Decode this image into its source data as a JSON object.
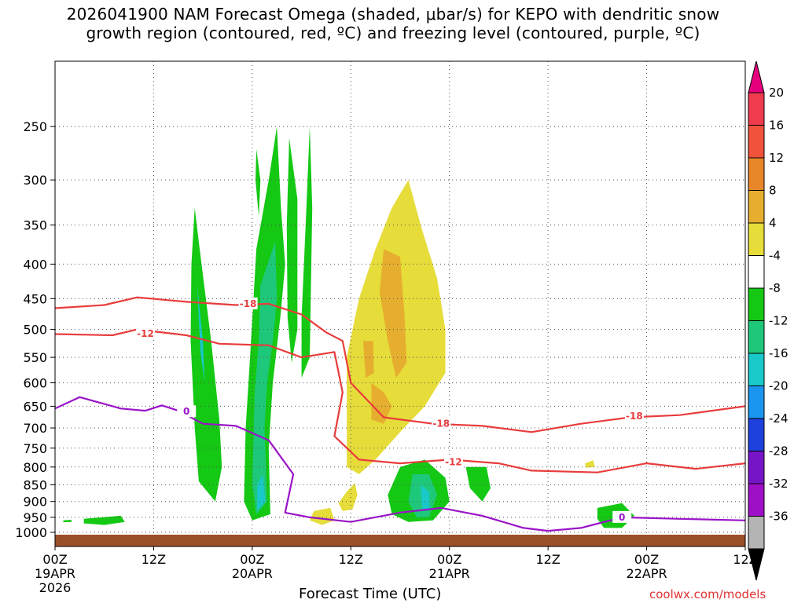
{
  "title_lines": [
    "2026041900 NAM Forecast Omega (shaded, μbar/s) for KEPO with dendritic snow",
    "growth region (contoured, red, ºC) and freezing level (contoured, purple, ºC)"
  ],
  "xlabel": "Forecast Time (UTC)",
  "credit": "coolwx.com/models",
  "chart_data": {
    "type": "heatmap",
    "title": "2026041900 NAM Forecast Omega (shaded, μbar/s) for KEPO with dendritic snow growth region (contoured, red, ºC) and freezing level (contoured, purple, ºC)",
    "xlabel": "Forecast Time (UTC)",
    "ylabel": "",
    "xlim_hours": [
      0,
      84
    ],
    "ylim_hPa": [
      1000,
      200
    ],
    "x_ticks": [
      {
        "hour": 0,
        "label": "00Z",
        "sub1": "19APR",
        "sub2": "2026"
      },
      {
        "hour": 12,
        "label": "12Z",
        "sub1": "",
        "sub2": ""
      },
      {
        "hour": 24,
        "label": "00Z",
        "sub1": "20APR",
        "sub2": ""
      },
      {
        "hour": 36,
        "label": "12Z",
        "sub1": "",
        "sub2": ""
      },
      {
        "hour": 48,
        "label": "00Z",
        "sub1": "21APR",
        "sub2": ""
      },
      {
        "hour": 60,
        "label": "12Z",
        "sub1": "",
        "sub2": ""
      },
      {
        "hour": 72,
        "label": "00Z",
        "sub1": "22APR",
        "sub2": ""
      },
      {
        "hour": 84,
        "label": "12Z",
        "sub1": "",
        "sub2": ""
      }
    ],
    "y_ticks": [
      250,
      300,
      350,
      400,
      450,
      500,
      550,
      600,
      650,
      700,
      750,
      800,
      850,
      900,
      950,
      1000
    ],
    "colorbar": {
      "labels": [
        "20",
        "16",
        "12",
        "8",
        "4",
        "-4",
        "-8",
        "-12",
        "-16",
        "-20",
        "-24",
        "-28",
        "-32",
        "-36"
      ],
      "colors": [
        "#f03a4e",
        "#f0523a",
        "#e8862a",
        "#e6ae2e",
        "#e6dc3a",
        "#ffffff",
        "#14c814",
        "#1ec87a",
        "#19c8c8",
        "#1a96f0",
        "#1e40dc",
        "#7814c8",
        "#a00fc8",
        "#b4b4b4"
      ],
      "top_arrow_color": "#e6007e",
      "bottom_arrow_color": "#000000"
    },
    "contour_labels": [
      {
        "text": "-18",
        "color": "#e83c3c",
        "hour": 23.5,
        "hPa": 458
      },
      {
        "text": "-12",
        "color": "#e83c3c",
        "hour": 11,
        "hPa": 507
      },
      {
        "text": "-18",
        "color": "#e83c3c",
        "hour": 47,
        "hPa": 690
      },
      {
        "text": "-12",
        "color": "#e83c3c",
        "hour": 48.5,
        "hPa": 787
      },
      {
        "text": "-18",
        "color": "#e83c3c",
        "hour": 70.5,
        "hPa": 672
      },
      {
        "text": "0",
        "color": "#9a14c8",
        "hour": 16,
        "hPa": 662
      },
      {
        "text": "0",
        "color": "#9a14c8",
        "hour": 69,
        "hPa": 950
      }
    ],
    "freezing_level_0C": [
      {
        "hour": 0,
        "hPa": 655
      },
      {
        "hour": 3,
        "hPa": 630
      },
      {
        "hour": 8,
        "hPa": 655
      },
      {
        "hour": 11,
        "hPa": 660
      },
      {
        "hour": 13,
        "hPa": 648
      },
      {
        "hour": 15,
        "hPa": 660
      },
      {
        "hour": 18,
        "hPa": 690
      },
      {
        "hour": 22,
        "hPa": 695
      },
      {
        "hour": 26,
        "hPa": 730
      },
      {
        "hour": 29,
        "hPa": 820
      },
      {
        "hour": 28,
        "hPa": 935
      },
      {
        "hour": 31,
        "hPa": 950
      },
      {
        "hour": 36,
        "hPa": 965
      },
      {
        "hour": 42,
        "hPa": 935
      },
      {
        "hour": 47,
        "hPa": 920
      },
      {
        "hour": 52,
        "hPa": 945
      },
      {
        "hour": 57,
        "hPa": 985
      },
      {
        "hour": 60,
        "hPa": 995
      },
      {
        "hour": 64,
        "hPa": 985
      },
      {
        "hour": 69,
        "hPa": 950
      },
      {
        "hour": 76,
        "hPa": 955
      },
      {
        "hour": 84,
        "hPa": 960
      }
    ],
    "isotherm_neg12C": [
      {
        "hour": 0,
        "hPa": 508
      },
      {
        "hour": 7,
        "hPa": 510
      },
      {
        "hour": 10,
        "hPa": 500
      },
      {
        "hour": 16,
        "hPa": 510
      },
      {
        "hour": 20,
        "hPa": 525
      },
      {
        "hour": 26,
        "hPa": 528
      },
      {
        "hour": 30,
        "hPa": 550
      },
      {
        "hour": 34,
        "hPa": 540
      },
      {
        "hour": 35,
        "hPa": 620
      },
      {
        "hour": 34,
        "hPa": 720
      },
      {
        "hour": 37,
        "hPa": 780
      },
      {
        "hour": 42,
        "hPa": 790
      },
      {
        "hour": 48,
        "hPa": 780
      },
      {
        "hour": 54,
        "hPa": 790
      },
      {
        "hour": 58,
        "hPa": 810
      },
      {
        "hour": 66,
        "hPa": 815
      },
      {
        "hour": 72,
        "hPa": 790
      },
      {
        "hour": 78,
        "hPa": 805
      },
      {
        "hour": 84,
        "hPa": 790
      }
    ],
    "isotherm_neg18C": [
      {
        "hour": 0,
        "hPa": 465
      },
      {
        "hour": 6,
        "hPa": 460
      },
      {
        "hour": 10,
        "hPa": 448
      },
      {
        "hour": 16,
        "hPa": 455
      },
      {
        "hour": 22,
        "hPa": 460
      },
      {
        "hour": 26,
        "hPa": 458
      },
      {
        "hour": 30,
        "hPa": 475
      },
      {
        "hour": 33,
        "hPa": 505
      },
      {
        "hour": 35,
        "hPa": 520
      },
      {
        "hour": 36,
        "hPa": 600
      },
      {
        "hour": 40,
        "hPa": 675
      },
      {
        "hour": 46,
        "hPa": 690
      },
      {
        "hour": 52,
        "hPa": 695
      },
      {
        "hour": 58,
        "hPa": 710
      },
      {
        "hour": 64,
        "hPa": 690
      },
      {
        "hour": 70,
        "hPa": 675
      },
      {
        "hour": 76,
        "hPa": 670
      },
      {
        "hour": 84,
        "hPa": 650
      }
    ],
    "omega_regions": [
      {
        "color": "#14c814",
        "points": [
          [
            17,
            330
          ],
          [
            17.6,
            380
          ],
          [
            19,
            520
          ],
          [
            20,
            680
          ],
          [
            20.3,
            800
          ],
          [
            19.5,
            900
          ],
          [
            17.5,
            840
          ],
          [
            17,
            700
          ],
          [
            16.5,
            520
          ],
          [
            16.6,
            400
          ]
        ]
      },
      {
        "color": "#19c8c8",
        "points": [
          [
            17.3,
            430
          ],
          [
            18,
            520
          ],
          [
            18.2,
            600
          ],
          [
            17.7,
            540
          ]
        ]
      },
      {
        "color": "#14c814",
        "points": [
          [
            24.5,
            380
          ],
          [
            26,
            300
          ],
          [
            27,
            250
          ],
          [
            27.5,
            330
          ],
          [
            28,
            400
          ],
          [
            27.5,
            470
          ],
          [
            26.5,
            600
          ],
          [
            26,
            750
          ],
          [
            26.2,
            940
          ],
          [
            24,
            960
          ],
          [
            23,
            900
          ],
          [
            23.2,
            700
          ],
          [
            23.7,
            560
          ]
        ]
      },
      {
        "color": "#1ec87a",
        "points": [
          [
            25,
            430
          ],
          [
            26.8,
            370
          ],
          [
            27,
            450
          ],
          [
            26.5,
            520
          ],
          [
            25.8,
            600
          ],
          [
            25.5,
            700
          ],
          [
            25.8,
            900
          ],
          [
            24.5,
            940
          ],
          [
            24,
            850
          ],
          [
            24.3,
            620
          ],
          [
            24.8,
            520
          ]
        ]
      },
      {
        "color": "#19c8c8",
        "points": [
          [
            25.3,
            820
          ],
          [
            25.6,
            900
          ],
          [
            24.6,
            930
          ],
          [
            24.6,
            850
          ]
        ]
      },
      {
        "color": "#14c814",
        "points": [
          [
            24.5,
            270
          ],
          [
            25,
            300
          ],
          [
            24.8,
            340
          ],
          [
            24.4,
            300
          ]
        ]
      },
      {
        "color": "#14c814",
        "points": [
          [
            28.5,
            260
          ],
          [
            29.5,
            320
          ],
          [
            29.5,
            500
          ],
          [
            28.8,
            560
          ],
          [
            28.3,
            480
          ],
          [
            28.2,
            350
          ]
        ]
      },
      {
        "color": "#14c814",
        "points": [
          [
            31,
            250
          ],
          [
            31.3,
            330
          ],
          [
            31,
            550
          ],
          [
            30,
            590
          ],
          [
            30,
            480
          ],
          [
            30.5,
            350
          ]
        ]
      },
      {
        "color": "#e6dc3a",
        "points": [
          [
            43,
            300
          ],
          [
            44.5,
            350
          ],
          [
            46.5,
            420
          ],
          [
            47.5,
            500
          ],
          [
            47.5,
            580
          ],
          [
            45,
            650
          ],
          [
            42,
            710
          ],
          [
            39,
            780
          ],
          [
            37,
            820
          ],
          [
            35.5,
            800
          ],
          [
            35.5,
            550
          ],
          [
            37,
            450
          ],
          [
            39,
            380
          ],
          [
            41,
            330
          ]
        ]
      },
      {
        "color": "#e6ae2e",
        "points": [
          [
            40,
            380
          ],
          [
            42,
            390
          ],
          [
            42.5,
            470
          ],
          [
            42.8,
            560
          ],
          [
            41.5,
            590
          ],
          [
            40.5,
            520
          ],
          [
            39.5,
            440
          ]
        ]
      },
      {
        "color": "#e6ae2e",
        "points": [
          [
            38.5,
            600
          ],
          [
            40,
            620
          ],
          [
            41,
            650
          ],
          [
            40,
            690
          ],
          [
            38.5,
            680
          ]
        ]
      },
      {
        "color": "#e6ae2e",
        "points": [
          [
            37.5,
            520
          ],
          [
            38.7,
            520
          ],
          [
            38.8,
            580
          ],
          [
            37.8,
            590
          ]
        ]
      },
      {
        "color": "#14c814",
        "points": [
          [
            42,
            800
          ],
          [
            45,
            780
          ],
          [
            47.5,
            830
          ],
          [
            48,
            900
          ],
          [
            46,
            960
          ],
          [
            43,
            965
          ],
          [
            41,
            940
          ],
          [
            40.5,
            880
          ]
        ]
      },
      {
        "color": "#1ec87a",
        "points": [
          [
            43.5,
            820
          ],
          [
            45.5,
            820
          ],
          [
            46.5,
            880
          ],
          [
            45.5,
            950
          ],
          [
            44,
            950
          ],
          [
            43,
            900
          ]
        ]
      },
      {
        "color": "#19c8c8",
        "points": [
          [
            44.5,
            850
          ],
          [
            45.5,
            870
          ],
          [
            45.6,
            920
          ],
          [
            44.7,
            930
          ]
        ]
      },
      {
        "color": "#e6dc3a",
        "points": [
          [
            35.5,
            870
          ],
          [
            36.5,
            845
          ],
          [
            36.8,
            880
          ],
          [
            36.2,
            925
          ],
          [
            35,
            930
          ],
          [
            34.5,
            905
          ]
        ]
      },
      {
        "color": "#e6dc3a",
        "points": [
          [
            31.5,
            930
          ],
          [
            33.5,
            920
          ],
          [
            34,
            960
          ],
          [
            32.5,
            975
          ],
          [
            31,
            960
          ]
        ]
      },
      {
        "color": "#14c814",
        "points": [
          [
            50,
            800
          ],
          [
            52.5,
            800
          ],
          [
            53,
            860
          ],
          [
            52,
            900
          ],
          [
            50.5,
            860
          ]
        ]
      },
      {
        "color": "#14c814",
        "points": [
          [
            66,
            920
          ],
          [
            69,
            905
          ],
          [
            70.5,
            945
          ],
          [
            69,
            985
          ],
          [
            66.8,
            985
          ],
          [
            66,
            955
          ]
        ]
      },
      {
        "color": "#14c814",
        "points": [
          [
            3.5,
            955
          ],
          [
            8,
            945
          ],
          [
            8.5,
            965
          ],
          [
            6,
            975
          ],
          [
            3.5,
            970
          ]
        ]
      },
      {
        "color": "#14c814",
        "points": [
          [
            1,
            960
          ],
          [
            2,
            958
          ],
          [
            2,
            965
          ],
          [
            1,
            966
          ]
        ]
      },
      {
        "color": "#e6dc3a",
        "points": [
          [
            64.5,
            790
          ],
          [
            65.5,
            782
          ],
          [
            65.7,
            800
          ],
          [
            64.6,
            802
          ]
        ]
      }
    ],
    "terrain_hPa": 1000
  }
}
